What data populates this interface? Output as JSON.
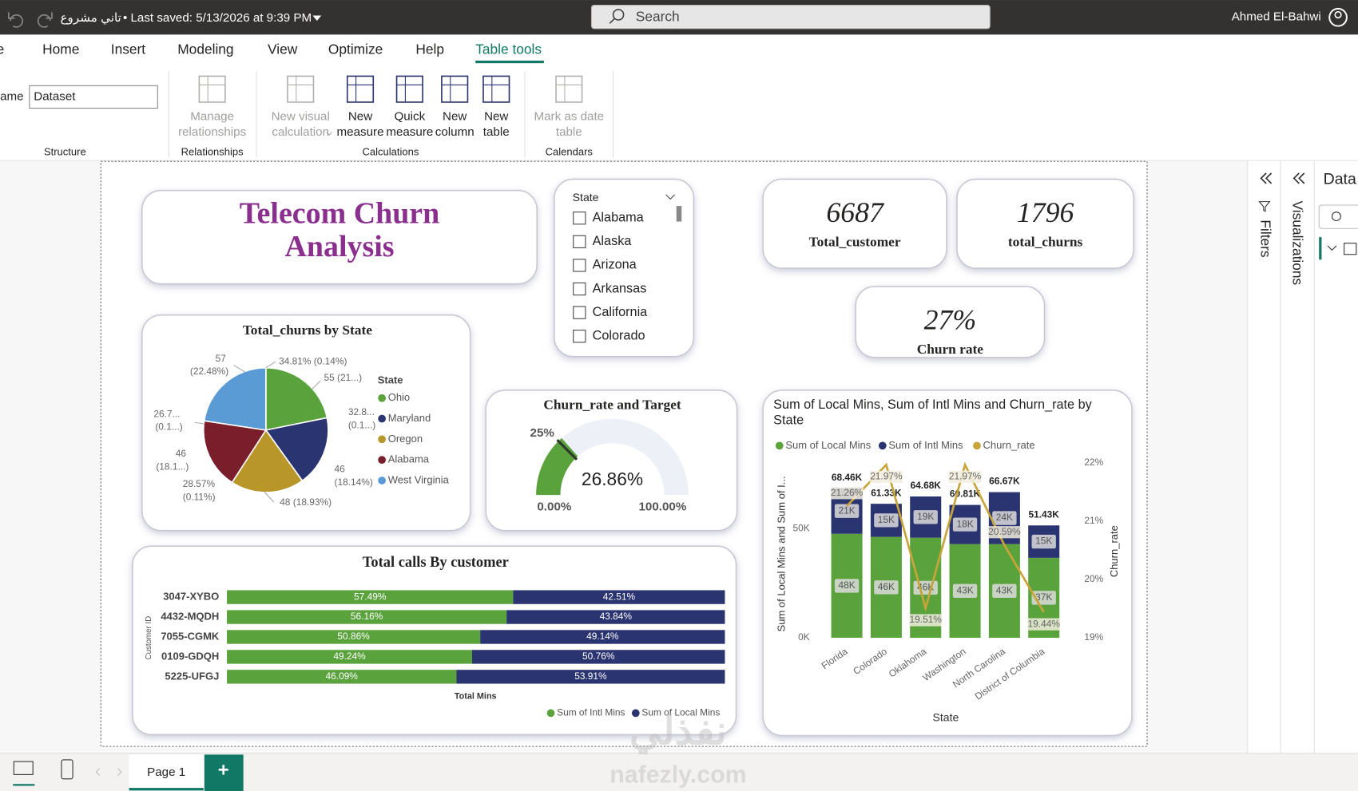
{
  "titlebar": {
    "file_name": "تاني مشروع",
    "saved": "• Last saved: 5/13/2026 at 9:39 PM",
    "search": "Search",
    "user": "Ahmed El-Bahwi"
  },
  "ribbon": {
    "tabs": [
      "e",
      "Home",
      "Insert",
      "Modeling",
      "View",
      "Optimize",
      "Help",
      "Table tools"
    ],
    "name_label": "lame",
    "name_value": "Dataset",
    "buttons": [
      {
        "lines": [
          "Manage",
          "relationships"
        ],
        "enabled": false
      },
      {
        "lines": [
          "New visual",
          "calculation"
        ],
        "enabled": false
      },
      {
        "lines": [
          "New",
          "measure"
        ],
        "enabled": true
      },
      {
        "lines": [
          "Quick",
          "measure"
        ],
        "enabled": true
      },
      {
        "lines": [
          "New",
          "column"
        ],
        "enabled": true
      },
      {
        "lines": [
          "New",
          "table"
        ],
        "enabled": true
      },
      {
        "lines": [
          "Mark as date",
          "table"
        ],
        "enabled": false
      }
    ],
    "groups": [
      "Structure",
      "Relationships",
      "Calculations",
      "Calendars"
    ]
  },
  "panes": {
    "filters": "Filters",
    "visualizations": "Visualizations",
    "data": "Data"
  },
  "pages": {
    "tabs": [
      "Page 1"
    ],
    "add": "+"
  },
  "watermark": {
    "arabic": "نفذلي",
    "latin": "nafezly.com"
  },
  "report": {
    "title": "Telecom Churn Analysis",
    "slicer": {
      "title": "State",
      "items": [
        "Alabama",
        "Alaska",
        "Arizona",
        "Arkansas",
        "California",
        "Colorado"
      ]
    },
    "cards": [
      {
        "value": 6687,
        "label": "Total_customer"
      },
      {
        "value": 1796,
        "label": "total_churns"
      },
      {
        "value": 27,
        "value_label": "27%",
        "label": "Churn  rate"
      }
    ]
  },
  "chart_data": [
    {
      "type": "pie",
      "title": "Total_churns by State",
      "legend_title": "State",
      "categories": [
        "Ohio",
        "Maryland",
        "Oregon",
        "Alabama",
        "West Virginia"
      ],
      "values": [
        55,
        46,
        48,
        46,
        57
      ],
      "value_labels": [
        "55 (21...)",
        "46 (18.14%)",
        "48 (18.93%)",
        "46 (18.1...)",
        "57 (22.48%)"
      ],
      "colors": [
        "#5aa33c",
        "#2a3470",
        "#b8962a",
        "#7a1e2b",
        "#5b9bd5"
      ],
      "annotations": [
        "34.81% (0.14%)",
        "32.8... (0.1...)",
        "28.57% (0.11%)",
        "26.7... (0.1...)"
      ]
    },
    {
      "type": "gauge",
      "title": "Churn_rate and Target",
      "value": 26.86,
      "value_label": "26.86%",
      "ylim": [
        0,
        100
      ],
      "yticks": [
        {
          "value": 0,
          "label": "0.00%"
        },
        {
          "value": 100,
          "label": "100.00%"
        }
      ],
      "target": 25,
      "target_label": "25%",
      "color": "#5aa33c"
    },
    {
      "type": "bar",
      "orientation": "horizontal",
      "stacked": true,
      "title": "Total calls By customer",
      "x_label": "Total Mins",
      "y_label": "Customer ID",
      "categories": [
        "3047-XYBO",
        "4432-MQDH",
        "7055-CGMK",
        "0109-GDQH",
        "5225-UFGJ"
      ],
      "xlim": [
        0,
        100
      ],
      "series": [
        {
          "name": "Sum of Intl Mins",
          "color": "#5aa33c",
          "values": [
            57.49,
            56.16,
            50.86,
            49.24,
            46.09
          ],
          "value_labels": [
            "57.49%",
            "56.16%",
            "50.86%",
            "49.24%",
            "46.09%"
          ]
        },
        {
          "name": "Sum of Local Mins",
          "color": "#2a3470",
          "values": [
            42.51,
            43.84,
            49.14,
            50.76,
            53.91
          ],
          "value_labels": [
            "42.51%",
            "43.84%",
            "49.14%",
            "50.76%",
            "53.91%"
          ]
        }
      ]
    },
    {
      "type": "combo",
      "title": "Sum of Local Mins, Sum of Intl Mins and Churn_rate by State",
      "x_label": "State",
      "y_label": "Sum of Local Mins and Sum of I...",
      "y2_label": "Churn_rate",
      "categories": [
        "Florida",
        "Colorado",
        "Oklahoma",
        "Washington",
        "North Carolina",
        "District of Columbia"
      ],
      "ylim": [
        0,
        80000
      ],
      "yticks": [
        {
          "value": 0,
          "label": "0K"
        },
        {
          "value": 50000,
          "label": "50K"
        }
      ],
      "y2lim": [
        19,
        22
      ],
      "y2ticks": [
        {
          "value": 19,
          "label": "19%"
        },
        {
          "value": 20,
          "label": "20%"
        },
        {
          "value": 21,
          "label": "21%"
        },
        {
          "value": 22,
          "label": "22%"
        }
      ],
      "series": [
        {
          "name": "Sum of Local Mins",
          "kind": "bar",
          "color": "#5aa33c",
          "values": [
            47600,
            46200,
            45800,
            42900,
            42900,
            36600
          ],
          "value_labels": [
            "48K",
            "46K",
            "46K",
            "43K",
            "43K",
            "37K"
          ]
        },
        {
          "name": "Sum of Intl Mins",
          "kind": "bar",
          "color": "#2a3470",
          "values": [
            20860,
            15130,
            18880,
            17910,
            23770,
            14830
          ],
          "value_labels": [
            "21K",
            "15K",
            "19K",
            "18K",
            "24K",
            "15K"
          ]
        },
        {
          "name": "Churn_rate",
          "kind": "line",
          "axis": "y2",
          "color": "#c8a43a",
          "values": [
            21.26,
            21.97,
            19.51,
            21.97,
            20.59,
            19.44
          ],
          "value_labels": [
            "21.26%",
            "21.97%",
            "19.51%",
            "21.97%",
            "20.59%",
            "19.44%"
          ]
        }
      ],
      "totals": [
        68460,
        61330,
        64680,
        60810,
        66670,
        51430
      ],
      "total_labels": [
        "68.46K",
        "61.33K",
        "64.68K",
        "60.81K",
        "66.67K",
        "51.43K"
      ]
    }
  ]
}
